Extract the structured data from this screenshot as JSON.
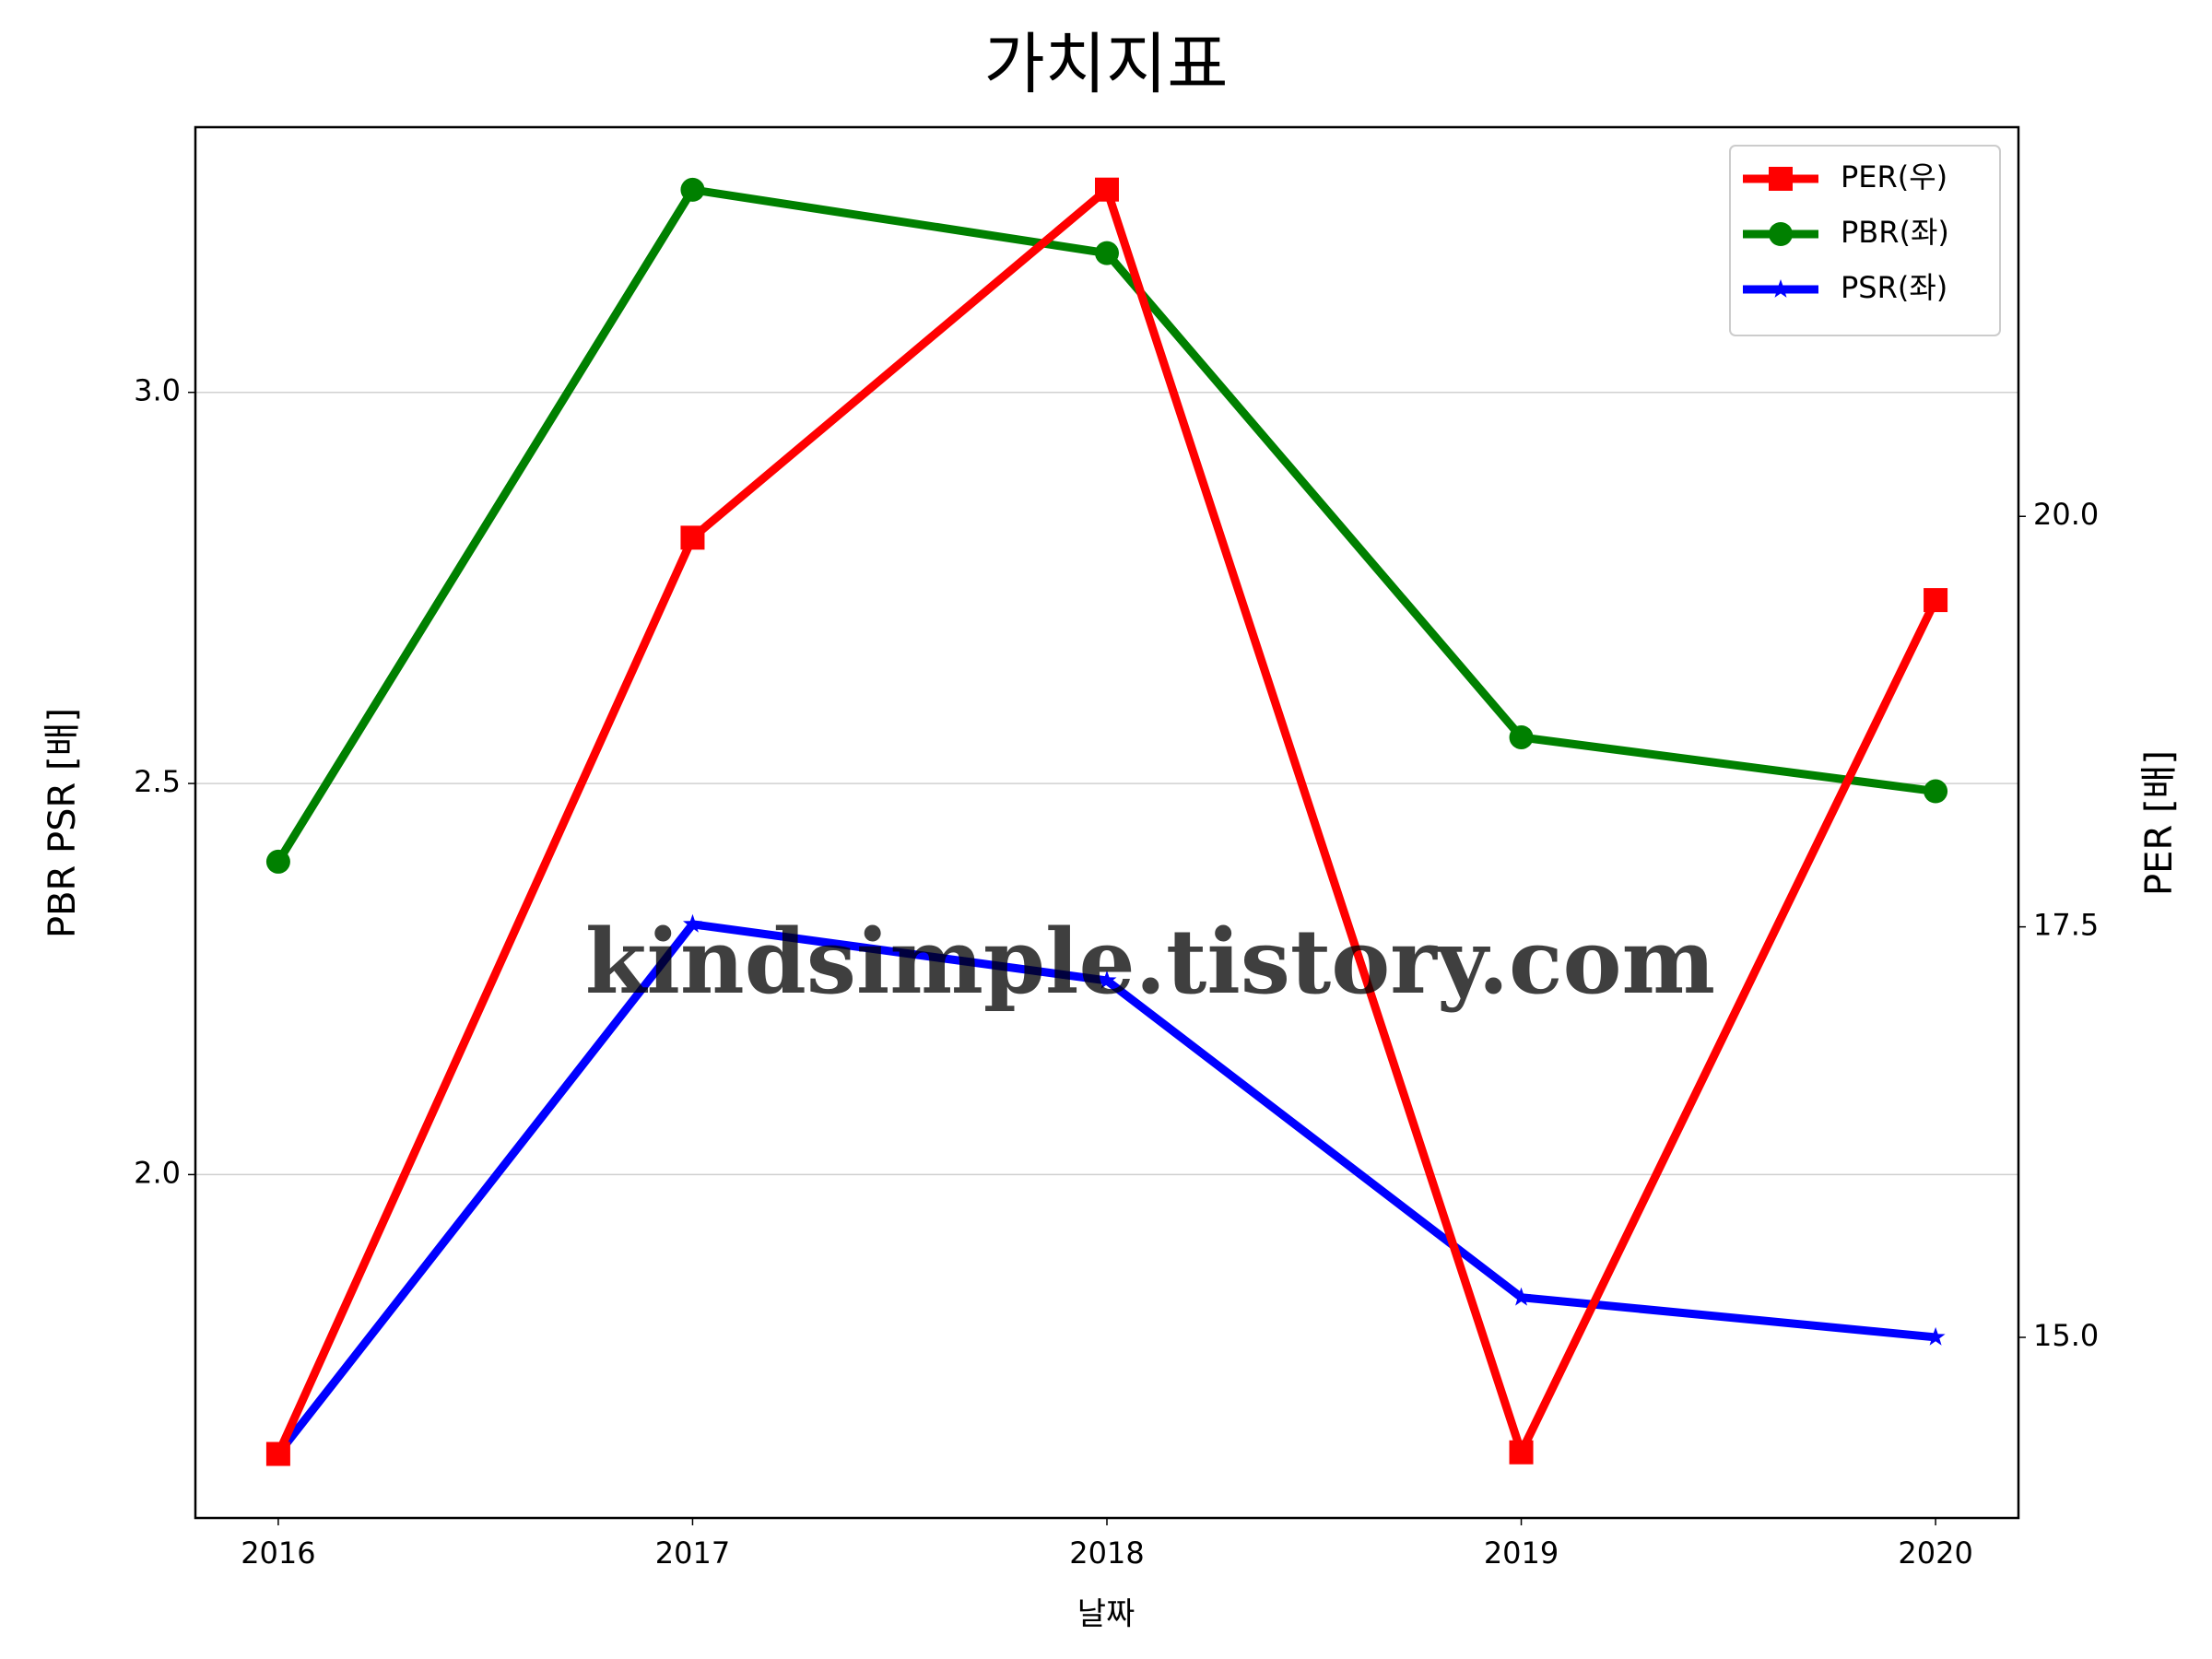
{
  "chart_data": {
    "type": "line",
    "title": "가치지표",
    "xlabel": "날짜",
    "ylabel": "PBR PSR [배]",
    "y2label": "PER [배]",
    "x": [
      2016,
      2017,
      2018,
      2019,
      2020
    ],
    "xlim": [
      2015.8,
      2020.2
    ],
    "xticks": [
      2016,
      2017,
      2018,
      2019,
      2020
    ],
    "ylim": [
      1.561,
      3.339
    ],
    "yticks": [
      {
        "value": 2,
        "label": "2.0"
      },
      2.5,
      {
        "value": 3,
        "label": "3.0"
      }
    ],
    "y2lim": [
      13.9,
      22.37
    ],
    "y2ticks": [
      {
        "value": 15,
        "label": "15.0"
      },
      17.5,
      {
        "value": 20,
        "label": "20.0"
      }
    ],
    "grid": true,
    "legend": "upper right",
    "ylabel_color": "#008000",
    "y2label_color": "#ff0000",
    "watermark": "kindsimple.tistory.com",
    "series": [
      {
        "name": "PER(우)",
        "color": "#ff0000",
        "marker": "square",
        "axis": "y2",
        "values": [
          14.29,
          19.87,
          21.99,
          14.3,
          19.49
        ]
      },
      {
        "name": "PBR(좌)",
        "color": "#008000",
        "marker": "circle",
        "values": [
          2.4,
          3.259,
          3.178,
          2.559,
          2.49
        ]
      },
      {
        "name": "PSR(좌)",
        "color": "#0000ff",
        "marker": "star",
        "values": [
          1.643,
          2.32,
          2.248,
          1.843,
          1.792
        ]
      }
    ]
  }
}
